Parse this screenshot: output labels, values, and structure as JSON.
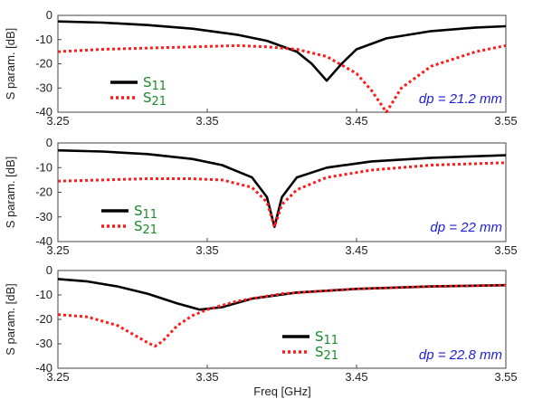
{
  "colors": {
    "s11": "#000000",
    "s21": "#ff1a1a",
    "legend_text": "#1a8a2a",
    "annotation": "#1f1fd6"
  },
  "xlabel": "Freq [GHz]",
  "chart_data": [
    {
      "type": "line",
      "ylabel": "S param. [dB]",
      "xlim": [
        3.25,
        3.55
      ],
      "ylim": [
        -40,
        0
      ],
      "xticks": [
        "3.25",
        "3.35",
        "3.45",
        "3.55"
      ],
      "yticks": [
        "0",
        "-10",
        "-20",
        "-30",
        "-40"
      ],
      "legend": [
        "S11",
        "S21"
      ],
      "legend_position": "bottom-left",
      "annotation": "dp = 21.2 mm",
      "series": [
        {
          "name": "S11",
          "style": "solid",
          "x": [
            3.25,
            3.28,
            3.31,
            3.34,
            3.37,
            3.39,
            3.41,
            3.42,
            3.43,
            3.44,
            3.45,
            3.47,
            3.5,
            3.53,
            3.55
          ],
          "y": [
            -2.5,
            -3,
            -4,
            -5.5,
            -8,
            -10.5,
            -15,
            -20,
            -27,
            -20,
            -14,
            -9.5,
            -6.5,
            -5,
            -4.5
          ]
        },
        {
          "name": "S21",
          "style": "dotted",
          "x": [
            3.25,
            3.28,
            3.31,
            3.34,
            3.37,
            3.39,
            3.41,
            3.43,
            3.45,
            3.46,
            3.47,
            3.48,
            3.5,
            3.53,
            3.55
          ],
          "y": [
            -15,
            -14,
            -13.5,
            -13,
            -12.5,
            -13,
            -14,
            -17,
            -24,
            -31,
            -40,
            -30,
            -21,
            -15,
            -12.5
          ]
        }
      ]
    },
    {
      "type": "line",
      "ylabel": "S param. [dB]",
      "xlim": [
        3.25,
        3.55
      ],
      "ylim": [
        -40,
        0
      ],
      "xticks": [
        "3.25",
        "3.35",
        "3.45",
        "3.55"
      ],
      "yticks": [
        "0",
        "-10",
        "-20",
        "-30",
        "-40"
      ],
      "legend": [
        "S11",
        "S21"
      ],
      "legend_position": "bottom-left",
      "annotation": "dp = 22 mm",
      "series": [
        {
          "name": "S11",
          "style": "solid",
          "x": [
            3.25,
            3.28,
            3.31,
            3.34,
            3.36,
            3.38,
            3.39,
            3.395,
            3.4,
            3.41,
            3.43,
            3.46,
            3.5,
            3.55
          ],
          "y": [
            -3,
            -3.5,
            -4.5,
            -6.5,
            -9,
            -14,
            -22,
            -34,
            -22,
            -14,
            -10,
            -7.5,
            -6,
            -5
          ]
        },
        {
          "name": "S21",
          "style": "dotted",
          "x": [
            3.25,
            3.28,
            3.31,
            3.34,
            3.36,
            3.38,
            3.39,
            3.395,
            3.4,
            3.41,
            3.43,
            3.46,
            3.5,
            3.55
          ],
          "y": [
            -15.5,
            -15,
            -14.5,
            -14.5,
            -15,
            -18,
            -24,
            -34,
            -25,
            -19,
            -14,
            -11,
            -9,
            -8
          ]
        }
      ]
    },
    {
      "type": "line",
      "ylabel": "S param. [dB]",
      "xlabel": "Freq [GHz]",
      "xlim": [
        3.25,
        3.55
      ],
      "ylim": [
        -40,
        0
      ],
      "xticks": [
        "3.25",
        "3.35",
        "3.45",
        "3.55"
      ],
      "yticks": [
        "0",
        "-10",
        "-20",
        "-30",
        "-40"
      ],
      "legend": [
        "S11",
        "S21"
      ],
      "legend_position": "bottom-center",
      "annotation": "dp = 22.8 mm",
      "series": [
        {
          "name": "S11",
          "style": "solid",
          "x": [
            3.25,
            3.27,
            3.29,
            3.31,
            3.33,
            3.345,
            3.36,
            3.38,
            3.41,
            3.45,
            3.5,
            3.55
          ],
          "y": [
            -3.5,
            -4.5,
            -6.5,
            -9.5,
            -13.5,
            -16,
            -15,
            -11.5,
            -9,
            -7.5,
            -6.5,
            -6
          ]
        },
        {
          "name": "S21",
          "style": "dotted",
          "x": [
            3.25,
            3.27,
            3.29,
            3.3,
            3.31,
            3.315,
            3.32,
            3.33,
            3.34,
            3.35,
            3.37,
            3.4,
            3.45,
            3.5,
            3.55
          ],
          "y": [
            -18,
            -19,
            -22.5,
            -26,
            -29.5,
            -31,
            -29,
            -22.5,
            -18.5,
            -16,
            -12.5,
            -9.5,
            -7.5,
            -6.5,
            -6
          ]
        }
      ]
    }
  ]
}
